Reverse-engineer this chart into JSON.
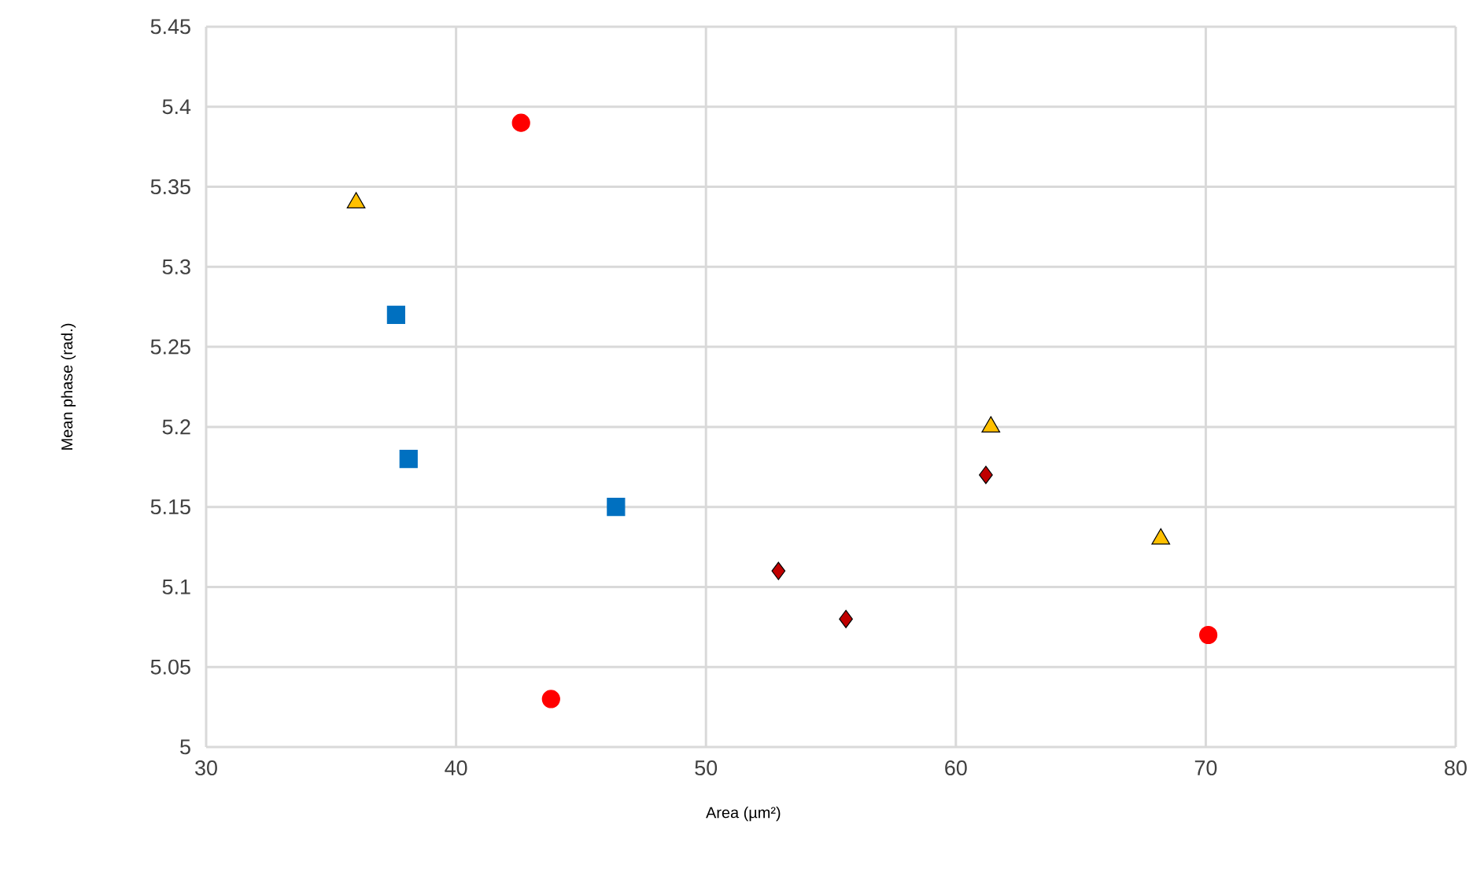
{
  "chart_data": {
    "type": "scatter",
    "xlabel": "Area (µm²)",
    "ylabel": "Mean phase (rad.)",
    "xlim": [
      30,
      80
    ],
    "xticks": [
      30,
      40,
      50,
      60,
      70,
      80
    ],
    "ylim": [
      5,
      5.45
    ],
    "yticks": [
      5,
      5.05,
      5.1,
      5.15,
      5.2,
      5.25,
      5.3,
      5.35,
      5.4,
      5.45
    ],
    "grid": true,
    "series": [
      {
        "color": "#ff0000",
        "marker": "circle",
        "x": [
          42.6,
          43.8,
          70.1
        ],
        "values": [
          5.39,
          5.03,
          5.07
        ]
      },
      {
        "color": "#ffc000",
        "marker": "triangle",
        "x": [
          36.0,
          61.4,
          68.2
        ],
        "values": [
          5.34,
          5.2,
          5.13
        ]
      },
      {
        "color": "#0070c0",
        "marker": "square",
        "x": [
          37.6,
          38.1,
          46.4
        ],
        "values": [
          5.27,
          5.18,
          5.15
        ]
      },
      {
        "color": "#c00000",
        "marker": "diamond",
        "x": [
          52.9,
          55.6,
          61.2
        ],
        "values": [
          5.11,
          5.08,
          5.17
        ]
      }
    ]
  }
}
